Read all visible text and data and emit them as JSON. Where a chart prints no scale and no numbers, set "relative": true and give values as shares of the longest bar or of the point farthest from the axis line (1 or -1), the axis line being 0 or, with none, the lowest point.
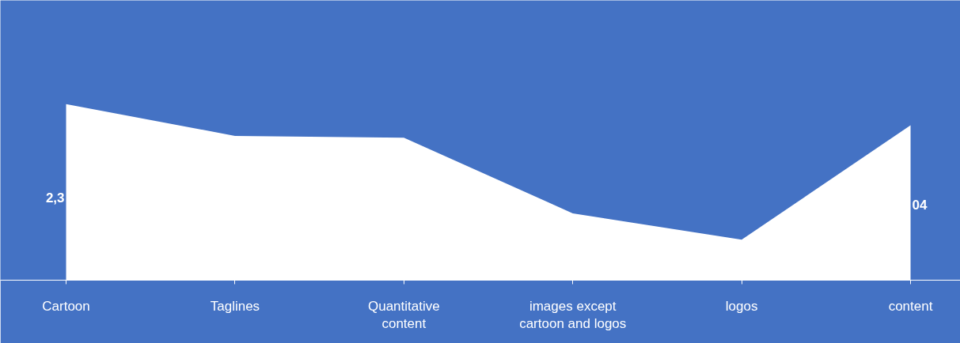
{
  "chart_data": {
    "type": "area",
    "relative": true,
    "categories": [
      "Cartoon",
      "Taglines",
      "Quantitative content",
      "images except cartoon and logos",
      "logos",
      "content"
    ],
    "series": [
      {
        "color": "#ffffff",
        "values": [
          1,
          0.82,
          0.81,
          0.38,
          0.23,
          0.88
        ]
      }
    ],
    "annotations": [
      {
        "text": "2,3",
        "x": "Cartoon",
        "y": 0.47
      },
      {
        "text": "04",
        "x": "content",
        "y": 0.43
      }
    ],
    "grid": false
  }
}
